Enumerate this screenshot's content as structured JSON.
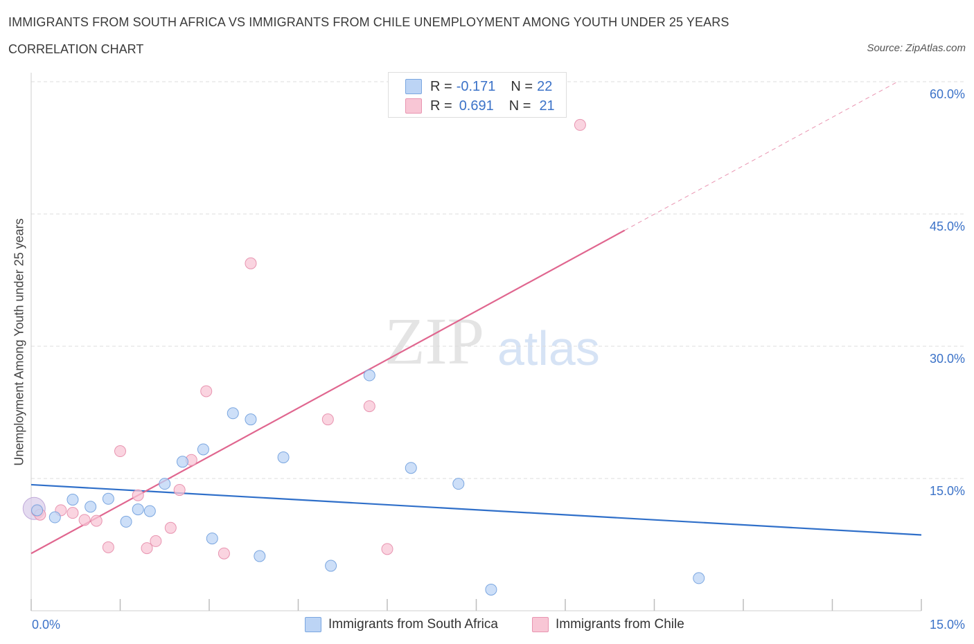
{
  "header": {
    "title": "IMMIGRANTS FROM SOUTH AFRICA VS IMMIGRANTS FROM CHILE UNEMPLOYMENT AMONG YOUTH UNDER 25 YEARS",
    "subtitle": "CORRELATION CHART",
    "source": "Source: ZipAtlas.com"
  },
  "legend": {
    "rows": [
      {
        "r_label": "R =",
        "r_value": "-0.171",
        "n_label": "N =",
        "n_value": "22"
      },
      {
        "r_label": "R =",
        "r_value": "0.691",
        "n_label": "N =",
        "n_value": "21"
      }
    ]
  },
  "bottom_legend": {
    "south_africa": "Immigrants from South Africa",
    "chile": "Immigrants from Chile"
  },
  "watermark": {
    "zip": "ZIP",
    "atlas": "atlas"
  },
  "colors": {
    "blue_fill": "#bcd4f5",
    "blue_stroke": "#7aa6e0",
    "blue_line": "#2f6fc9",
    "pink_fill": "#f8c6d5",
    "pink_stroke": "#e894b0",
    "pink_line": "#e0668f",
    "tick_text": "#3b72c8",
    "grid": "#dddddd"
  },
  "chart_data": {
    "type": "scatter",
    "xlabel": "",
    "ylabel": "Unemployment Among Youth under 25 years",
    "xlim": [
      0,
      15
    ],
    "ylim": [
      0,
      60
    ],
    "x_tick_labels": [
      "0.0%",
      "15.0%"
    ],
    "y_ticks": [
      15,
      30,
      45,
      60
    ],
    "y_tick_labels": [
      "15.0%",
      "30.0%",
      "45.0%",
      "60.0%"
    ],
    "grid": true,
    "legend_position": "top-center",
    "series": [
      {
        "name": "Immigrants from South Africa",
        "r": -0.171,
        "n": 22,
        "trend": {
          "x0": 0,
          "y0": 14.3,
          "x1": 15,
          "y1": 8.6,
          "dashed_from_x": null
        },
        "points": [
          [
            0.1,
            11.4
          ],
          [
            0.4,
            10.6
          ],
          [
            0.7,
            12.6
          ],
          [
            1.0,
            11.8
          ],
          [
            1.3,
            12.7
          ],
          [
            1.6,
            10.1
          ],
          [
            1.8,
            11.5
          ],
          [
            2.0,
            11.3
          ],
          [
            2.25,
            14.4
          ],
          [
            2.55,
            16.9
          ],
          [
            2.9,
            18.3
          ],
          [
            3.05,
            8.2
          ],
          [
            3.4,
            22.4
          ],
          [
            3.7,
            21.7
          ],
          [
            3.85,
            6.2
          ],
          [
            4.25,
            17.4
          ],
          [
            5.05,
            5.1
          ],
          [
            5.7,
            26.7
          ],
          [
            6.4,
            16.2
          ],
          [
            7.2,
            14.4
          ],
          [
            7.75,
            2.4
          ],
          [
            11.25,
            3.7
          ]
        ]
      },
      {
        "name": "Immigrants from Chile",
        "r": 0.691,
        "n": 21,
        "trend": {
          "x0": 0,
          "y0": 6.5,
          "x1": 14.6,
          "y1": 60.0,
          "solid_to_x": 10.0
        },
        "points": [
          [
            0.1,
            11.3
          ],
          [
            0.5,
            11.4
          ],
          [
            0.7,
            11.1
          ],
          [
            0.9,
            10.3
          ],
          [
            1.1,
            10.2
          ],
          [
            1.3,
            7.2
          ],
          [
            1.5,
            18.1
          ],
          [
            1.8,
            13.1
          ],
          [
            1.95,
            7.1
          ],
          [
            2.1,
            7.9
          ],
          [
            2.35,
            9.4
          ],
          [
            2.5,
            13.7
          ],
          [
            2.7,
            17.1
          ],
          [
            2.95,
            24.9
          ],
          [
            3.25,
            6.5
          ],
          [
            3.7,
            39.4
          ],
          [
            5.0,
            21.7
          ],
          [
            5.7,
            23.2
          ],
          [
            6.0,
            7.0
          ],
          [
            9.25,
            55.1
          ],
          [
            0.15,
            10.9
          ]
        ]
      }
    ]
  }
}
